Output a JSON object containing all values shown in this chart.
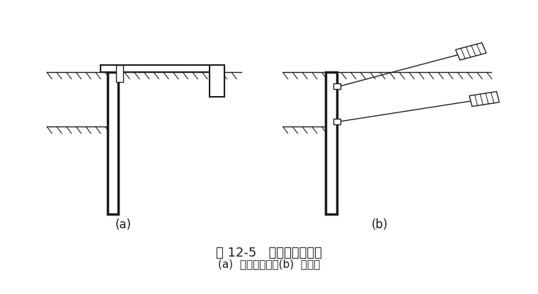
{
  "bg_color": "#ffffff",
  "line_color": "#1a1a1a",
  "title": "图 12-5   拉锚式支护结构",
  "subtitle": "(a)  地面拉锚式；(b)  锚杆式",
  "label_a": "(a)",
  "label_b": "(b)",
  "title_fontsize": 13,
  "subtitle_fontsize": 11,
  "label_fontsize": 12
}
